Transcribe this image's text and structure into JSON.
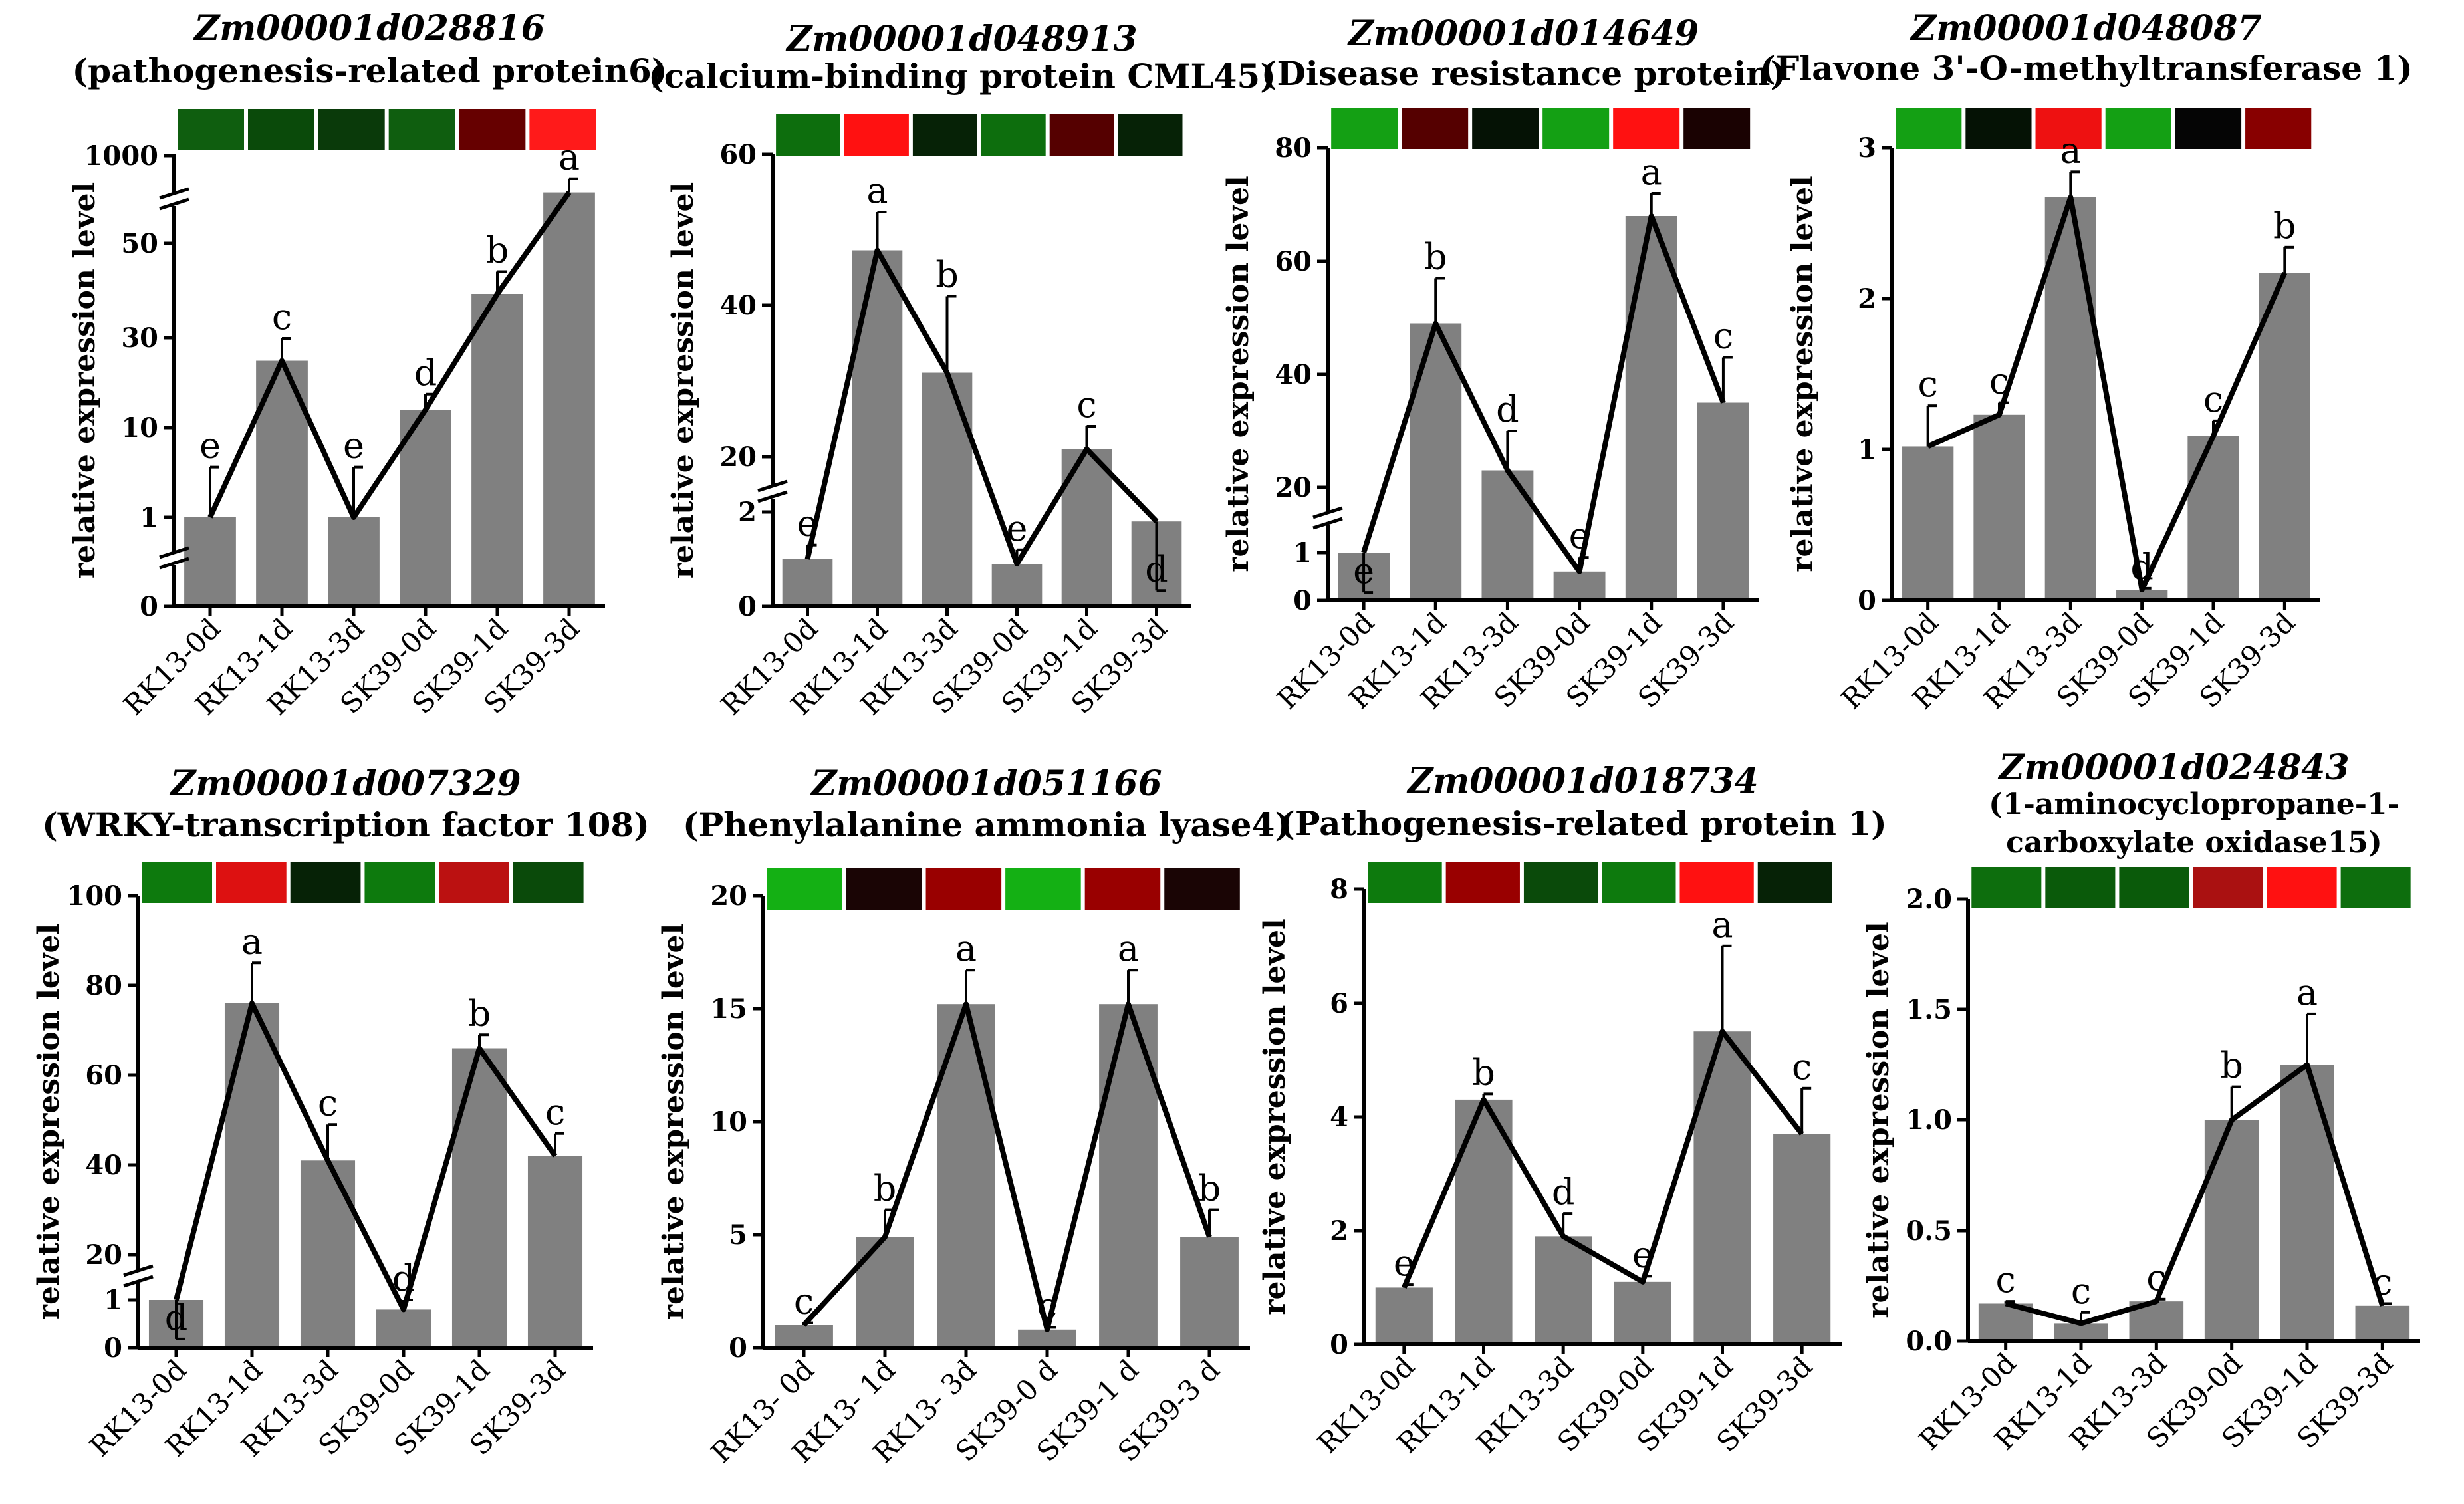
{
  "figure": {
    "colors": {
      "bar": "#808080",
      "line": "#000000",
      "axis": "#000000"
    }
  },
  "chart_data": [
    {
      "type": "bar",
      "title": "Zm00001d028816",
      "subtitle": [
        "(pathogenesis-related protein6)"
      ],
      "ylabel": "relative expression level",
      "categories": [
        "RK13-0d",
        "RK13-1d",
        "RK13-3d",
        "SK39-0d",
        "SK39-1d",
        "SK39-3d"
      ],
      "values": [
        1,
        25,
        1,
        14,
        40,
        600
      ],
      "errors": [
        0.1,
        5,
        0.1,
        3.5,
        5,
        150
      ],
      "letters": [
        "e",
        "c",
        "e",
        "d",
        "b",
        "a"
      ],
      "yticks": [
        "0",
        "1",
        "10",
        "30",
        "50",
        "1000"
      ],
      "heatmap": [
        "#0f5e0f",
        "#0a4a0a",
        "#0a3a0a",
        "#0f5e0f",
        "#660000",
        "#ff1a1a"
      ],
      "broken_axis": true
    },
    {
      "type": "bar",
      "title": "Zm00001d048913",
      "subtitle": [
        "(calcium-binding protein CML45)"
      ],
      "ylabel": "relative expression level",
      "categories": [
        "RK13-0d",
        "RK13-1d",
        "RK13-3d",
        "SK39-0d",
        "SK39-1d",
        "SK39-3d"
      ],
      "values": [
        1,
        47,
        31,
        0.9,
        21,
        1.8
      ],
      "errors": [
        0.3,
        5,
        10,
        0.3,
        3,
        0.7
      ],
      "letters": [
        "e",
        "a",
        "b",
        "e",
        "c",
        "d"
      ],
      "yticks": [
        "0",
        "2",
        "20",
        "40",
        "60"
      ],
      "heatmap": [
        "#0d6e0d",
        "#ff1111",
        "#062206",
        "#0d6e0d",
        "#550000",
        "#062206"
      ],
      "broken_axis": true
    },
    {
      "type": "bar",
      "title": "Zm00001d014649",
      "subtitle": [
        "(Disease resistance protein)"
      ],
      "ylabel": "relative expression level",
      "categories": [
        "RK13-0d",
        "RK13-1d",
        "RK13-3d",
        "SK39-0d",
        "SK39-1d",
        "SK39-3d"
      ],
      "values": [
        1,
        49,
        23,
        0.6,
        68,
        35
      ],
      "errors": [
        0.4,
        8,
        7,
        0.3,
        4,
        8
      ],
      "letters": [
        "e",
        "b",
        "d",
        "e",
        "a",
        "c"
      ],
      "yticks": [
        "0",
        "1",
        "20",
        "40",
        "60",
        "80"
      ],
      "heatmap": [
        "#14a014",
        "#550000",
        "#051205",
        "#14a014",
        "#ff1111",
        "#1a0202"
      ],
      "broken_axis": true
    },
    {
      "type": "bar",
      "title": "Zm00001d048087",
      "subtitle": [
        "(Flavone 3'-O-methyltransferase 1)"
      ],
      "ylabel": "relative expression level",
      "categories": [
        "RK13-0d",
        "RK13-1d",
        "RK13-3d",
        "SK39-0d",
        "SK39-1d",
        "SK39-3d"
      ],
      "values": [
        1.02,
        1.23,
        2.67,
        0.07,
        1.09,
        2.17
      ],
      "errors": [
        0.27,
        0.08,
        0.17,
        0.01,
        0.1,
        0.17
      ],
      "letters": [
        "c",
        "c",
        "a",
        "d",
        "c",
        "b"
      ],
      "yticks": [
        "0",
        "1",
        "2",
        "3"
      ],
      "ylim": [
        0,
        3
      ],
      "heatmap": [
        "#14a014",
        "#051205",
        "#ee1111",
        "#14a014",
        "#050505",
        "#880000"
      ],
      "broken_axis": false
    },
    {
      "type": "bar",
      "title": "Zm00001d007329",
      "subtitle": [
        "(WRKY-transcription factor 108)"
      ],
      "ylabel": "relative expression level",
      "categories": [
        "RK13-0d",
        "RK13-1d",
        "RK13-3d",
        "SK39-0d",
        "SK39-1d",
        "SK39-3d"
      ],
      "values": [
        1,
        76,
        41,
        0.8,
        66,
        42
      ],
      "errors": [
        0.2,
        9,
        8,
        0.2,
        3,
        5
      ],
      "letters": [
        "d",
        "a",
        "c",
        "d",
        "b",
        "c"
      ],
      "yticks": [
        "0",
        "1",
        "20",
        "40",
        "60",
        "80",
        "100"
      ],
      "heatmap": [
        "#0d7a0d",
        "#dd1111",
        "#062206",
        "#0d7a0d",
        "#bb1111",
        "#0a4a0a"
      ],
      "broken_axis": true
    },
    {
      "type": "bar",
      "title": "Zm00001d051166",
      "subtitle": [
        "(Phenylalanine ammonia lyase4)"
      ],
      "ylabel": "relative expression level",
      "categories": [
        "RK13- 0d",
        "RK13- 1d",
        "RK13- 3d",
        "SK39-0 d",
        "SK39-1 d",
        "SK39-3 d"
      ],
      "values": [
        1,
        4.9,
        15.2,
        0.8,
        15.2,
        4.9
      ],
      "errors": [
        0.1,
        1.2,
        1.5,
        0.1,
        1.5,
        1.2
      ],
      "letters": [
        "c",
        "b",
        "a",
        "c",
        "a",
        "b"
      ],
      "yticks": [
        "0",
        "5",
        "10",
        "15",
        "20"
      ],
      "ylim": [
        0,
        20
      ],
      "heatmap": [
        "#14b014",
        "#1a0505",
        "#990000",
        "#14b014",
        "#990000",
        "#1a0505"
      ],
      "broken_axis": false
    },
    {
      "type": "bar",
      "title": "Zm00001d018734",
      "subtitle": [
        "(Pathogenesis-related protein 1)"
      ],
      "ylabel": "relative expression level",
      "categories": [
        "RK13-0d",
        "RK13-1d",
        "RK13-3d",
        "SK39-0d",
        "SK39-1d",
        "SK39-3d"
      ],
      "values": [
        1,
        4.3,
        1.9,
        1.1,
        5.5,
        3.7
      ],
      "errors": [
        0.05,
        0.1,
        0.4,
        0.1,
        1.5,
        0.8
      ],
      "letters": [
        "e",
        "b",
        "d",
        "e",
        "a",
        "c"
      ],
      "yticks": [
        "0",
        "2",
        "4",
        "6",
        "8"
      ],
      "ylim": [
        0,
        8
      ],
      "heatmap": [
        "#0d7a0d",
        "#990000",
        "#0a4a0a",
        "#0d7a0d",
        "#ff1111",
        "#062206"
      ],
      "broken_axis": false
    },
    {
      "type": "bar",
      "title": "Zm00001d024843",
      "subtitle": [
        "(1-aminocyclopropane-1-",
        "carboxylate oxidase15)"
      ],
      "ylabel": "relative expression level",
      "categories": [
        "RK13-0d",
        "RK13-1d",
        "RK13-3d",
        "SK39-0d",
        "SK39-1d",
        "SK39-3d"
      ],
      "values": [
        0.17,
        0.08,
        0.18,
        1.0,
        1.25,
        0.16
      ],
      "errors": [
        0.01,
        0.05,
        0.01,
        0.15,
        0.23,
        0.01
      ],
      "letters": [
        "c",
        "c",
        "c",
        "b",
        "a",
        "c"
      ],
      "yticks": [
        "0.0",
        "0.5",
        "1.0",
        "1.5",
        "2.0"
      ],
      "ylim": [
        0,
        2
      ],
      "heatmap": [
        "#0d6e0d",
        "#0a5a0a",
        "#0a5a0a",
        "#aa1111",
        "#ff1111",
        "#0d6e0d"
      ],
      "broken_axis": false
    }
  ]
}
